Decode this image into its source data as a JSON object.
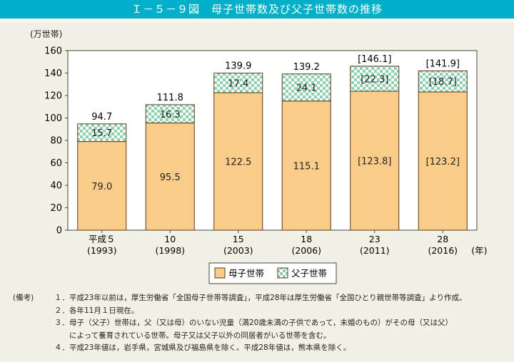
{
  "title": "Ｉ－５－９図　母子世帯数及び父子世帯数の推移",
  "chart_data": {
    "type": "bar",
    "stacked": true,
    "ylabel": "(万世帯)",
    "xunit": "(年)",
    "ylim": [
      0,
      160
    ],
    "yticks": [
      0,
      20,
      40,
      60,
      80,
      100,
      120,
      140,
      160
    ],
    "categories": [
      [
        "平成５",
        "(1993)"
      ],
      [
        "10",
        "(1998)"
      ],
      [
        "15",
        "(2003)"
      ],
      [
        "18",
        "(2006)"
      ],
      [
        "23",
        "(2011)"
      ],
      [
        "28",
        "(2016)"
      ]
    ],
    "series": [
      {
        "name": "母子世帯",
        "color": "#f9cc8a",
        "values": [
          79.0,
          95.5,
          122.5,
          115.1,
          123.8,
          123.2
        ],
        "labels": [
          "79.0",
          "95.5",
          "122.5",
          "115.1",
          "[123.8]",
          "[123.2]"
        ]
      },
      {
        "name": "父子世帯",
        "color": "#8fd0ae",
        "pattern": "checker",
        "values": [
          15.7,
          16.3,
          17.4,
          24.1,
          22.3,
          18.7
        ],
        "labels": [
          "15.7",
          "16.3",
          "17.4",
          "24.1",
          "[22.3]",
          "[18.7]"
        ]
      }
    ],
    "totals": [
      "94.7",
      "111.8",
      "139.9",
      "139.2",
      "[146.1]",
      "[141.9]"
    ],
    "total_values": [
      94.7,
      111.8,
      139.9,
      139.2,
      146.1,
      141.9
    ],
    "legend": "bottom-center"
  },
  "notes": {
    "label": "(備考)",
    "items": [
      "１．平成23年以前は，厚生労働省「全国母子世帯等調査」，平成28年は厚生労働省「全国ひとり親世帯等調査」より作成。",
      "２．各年11月１日現在。",
      "３．母子（父子）世帯は，父（又は母）のいない児童（満20歳未満の子供であって，未婚のもの）がその母（又は父）\n　　によって養育されている世帯。母子又は父子以外の同居者がいる世帯を含む。",
      "４．平成23年値は，岩手県，宮城県及び福島県を除く。平成28年値は，熊本県を除く。"
    ]
  }
}
